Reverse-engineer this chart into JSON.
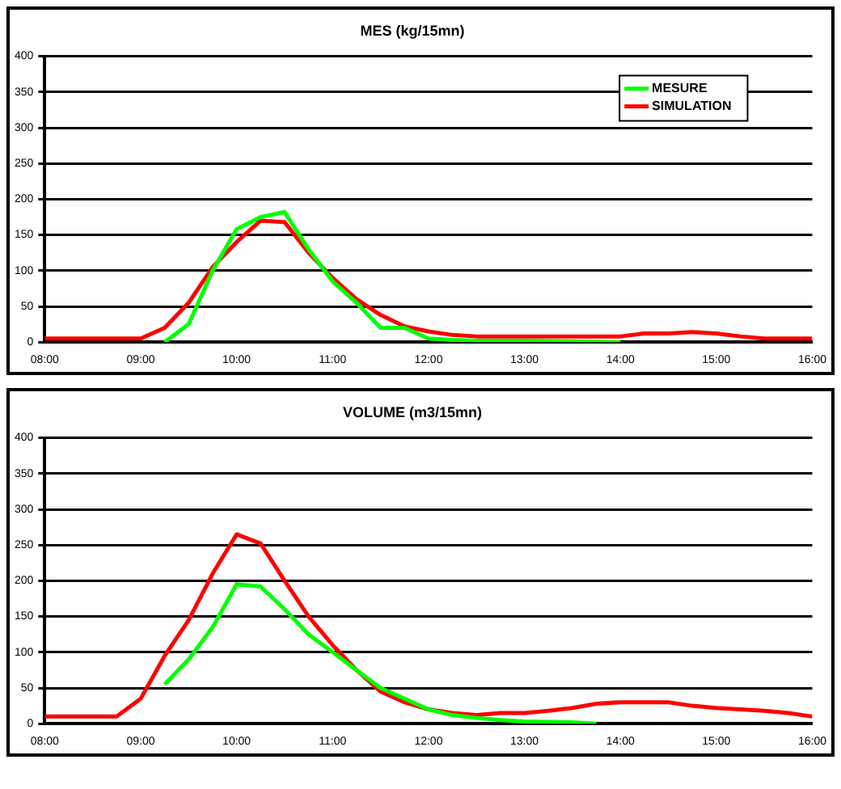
{
  "chart_data": [
    {
      "type": "line",
      "title": "MES (kg/15mn)",
      "legend": "top right",
      "grid": "y",
      "marker": "none",
      "line_style": "solid",
      "xlim": [
        8,
        16
      ],
      "xticks": [
        {
          "value": 8,
          "label": "08:00"
        },
        {
          "value": 9,
          "label": "09:00"
        },
        {
          "value": 10,
          "label": "10:00"
        },
        {
          "value": 11,
          "label": "11:00"
        },
        {
          "value": 12,
          "label": "12:00"
        },
        {
          "value": 13,
          "label": "13:00"
        },
        {
          "value": 14,
          "label": "14:00"
        },
        {
          "value": 15,
          "label": "15:00"
        },
        {
          "value": 16,
          "label": "16:00"
        }
      ],
      "ylim": [
        0,
        400
      ],
      "yticks": [
        0,
        50,
        100,
        150,
        200,
        250,
        300,
        350,
        400
      ],
      "series": [
        {
          "name": "MESURE",
          "color": "#00ff00",
          "x": [
            9.25,
            9.5,
            9.75,
            10,
            10.25,
            10.5,
            10.75,
            11,
            11.25,
            11.5,
            11.75,
            12,
            12.25,
            12.5,
            13,
            13.5,
            14
          ],
          "values": [
            0,
            25,
            100,
            158,
            175,
            182,
            130,
            85,
            55,
            20,
            20,
            5,
            3,
            2,
            2,
            1,
            0
          ]
        },
        {
          "name": "SIMULATION",
          "color": "#ff0000",
          "x": [
            8,
            8.5,
            8.75,
            9,
            9.25,
            9.5,
            9.75,
            10,
            10.25,
            10.5,
            10.75,
            11,
            11.25,
            11.5,
            11.75,
            12,
            12.25,
            12.5,
            13,
            13.5,
            14,
            14.25,
            14.5,
            14.75,
            15,
            15.25,
            15.5,
            16
          ],
          "values": [
            5,
            5,
            5,
            5,
            20,
            55,
            105,
            140,
            170,
            168,
            125,
            90,
            60,
            38,
            22,
            15,
            10,
            8,
            8,
            8,
            8,
            12,
            12,
            14,
            12,
            8,
            5,
            5
          ]
        }
      ]
    },
    {
      "type": "line",
      "title": "VOLUME (m3/15mn)",
      "legend": false,
      "grid": "y",
      "marker": "none",
      "line_style": "solid",
      "xlim": [
        8,
        16
      ],
      "xticks": [
        {
          "value": 8,
          "label": "08:00"
        },
        {
          "value": 9,
          "label": "09:00"
        },
        {
          "value": 10,
          "label": "10:00"
        },
        {
          "value": 11,
          "label": "11:00"
        },
        {
          "value": 12,
          "label": "12:00"
        },
        {
          "value": 13,
          "label": "13:00"
        },
        {
          "value": 14,
          "label": "14:00"
        },
        {
          "value": 15,
          "label": "15:00"
        },
        {
          "value": 16,
          "label": "16:00"
        }
      ],
      "ylim": [
        0,
        400
      ],
      "yticks": [
        0,
        50,
        100,
        150,
        200,
        250,
        300,
        350,
        400
      ],
      "series": [
        {
          "color": "#00ff00",
          "x": [
            9.25,
            9.5,
            9.75,
            10,
            10.25,
            10.5,
            10.75,
            11,
            11.25,
            11.5,
            11.75,
            12,
            12.25,
            12.5,
            12.75,
            13,
            13.5,
            13.75
          ],
          "values": [
            55,
            90,
            135,
            195,
            192,
            160,
            125,
            100,
            75,
            50,
            35,
            20,
            12,
            8,
            5,
            3,
            2,
            0
          ]
        },
        {
          "color": "#ff0000",
          "x": [
            8,
            8.5,
            8.75,
            9,
            9.25,
            9.5,
            9.75,
            10,
            10.25,
            10.5,
            10.75,
            11,
            11.25,
            11.5,
            11.75,
            12,
            12.25,
            12.5,
            12.75,
            13,
            13.25,
            13.5,
            13.75,
            14,
            14.25,
            14.5,
            14.75,
            15,
            15.25,
            15.5,
            15.75,
            16
          ],
          "values": [
            10,
            10,
            10,
            35,
            95,
            145,
            210,
            265,
            252,
            200,
            150,
            110,
            75,
            45,
            30,
            20,
            15,
            12,
            15,
            15,
            18,
            22,
            28,
            30,
            30,
            30,
            25,
            22,
            20,
            18,
            15,
            10
          ]
        }
      ]
    }
  ]
}
